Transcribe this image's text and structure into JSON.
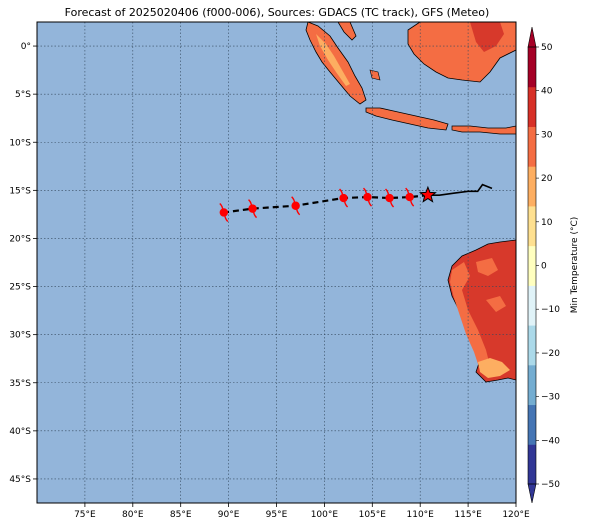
{
  "title": "Forecast of 2025020406 (f000-006), Sources: GDACS (TC track), GFS (Meteo)",
  "lon_ticks": [
    "75°E",
    "80°E",
    "85°E",
    "90°E",
    "95°E",
    "100°E",
    "105°E",
    "110°E",
    "115°E",
    "120°E"
  ],
  "lat_ticks": [
    "0°",
    "5°S",
    "10°S",
    "15°S",
    "20°S",
    "25°S",
    "30°S",
    "35°S",
    "40°S",
    "45°S"
  ],
  "colorbar": {
    "label": "Min Temperature (°C)",
    "ticks": [
      "50",
      "40",
      "30",
      "20",
      "10",
      "0",
      "−10",
      "−20",
      "−30",
      "−40",
      "−50"
    ],
    "colors": [
      "#313695",
      "#4575b4",
      "#74add1",
      "#abd9e9",
      "#e0f3f8",
      "#ffffbf",
      "#fee090",
      "#fdae61",
      "#f46d43",
      "#d73027",
      "#a50026"
    ]
  },
  "colors": {
    "ocean": "#93b5da",
    "land_hot": "#d7392b",
    "land_warm": "#f46d43",
    "land_mild": "#fdae61",
    "track": "#000000",
    "storm": "#ff0000"
  },
  "chart_data": {
    "type": "map",
    "extent": {
      "lon": [
        70,
        120
      ],
      "lat": [
        -47.5,
        2.5
      ]
    },
    "grid": true,
    "observed_track": [
      [
        110.8,
        -15.5
      ],
      [
        112,
        -15.5
      ],
      [
        113.5,
        -15.3
      ],
      [
        115,
        -15.1
      ],
      [
        116,
        -15.1
      ],
      [
        116.5,
        -14.4
      ],
      [
        117.5,
        -14.8
      ]
    ],
    "current_position": {
      "lon": 110.8,
      "lat": -15.5,
      "marker": "star"
    },
    "forecast_track": [
      [
        110.8,
        -15.5
      ],
      [
        108.9,
        -15.7
      ],
      [
        106.8,
        -15.8
      ],
      [
        104.5,
        -15.7
      ],
      [
        102,
        -15.8
      ],
      [
        97,
        -16.6
      ],
      [
        92.5,
        -16.9
      ],
      [
        89.5,
        -17.3
      ]
    ],
    "forecast_positions": [
      [
        108.9,
        -15.7
      ],
      [
        106.8,
        -15.8
      ],
      [
        104.5,
        -15.7
      ],
      [
        102,
        -15.8
      ],
      [
        97,
        -16.6
      ],
      [
        92.5,
        -16.9
      ],
      [
        89.5,
        -17.3
      ]
    ]
  }
}
